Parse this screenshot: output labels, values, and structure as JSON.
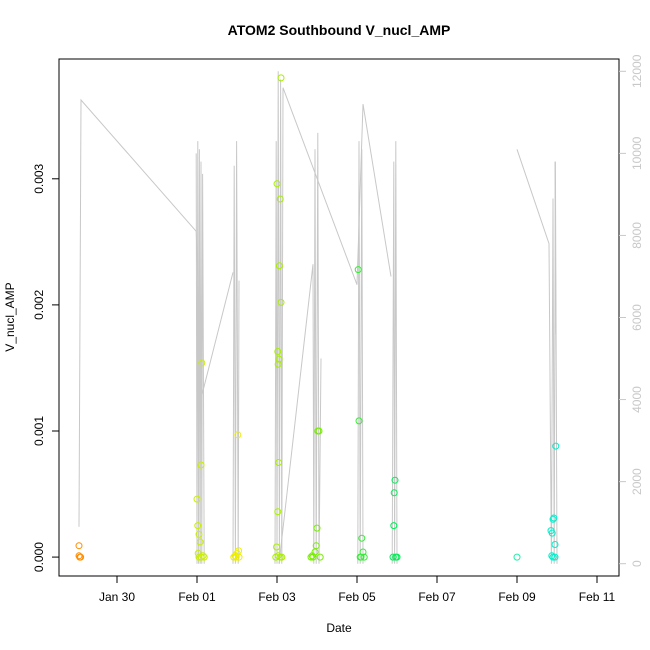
{
  "chart_data": {
    "type": "scatter",
    "title": "ATOM2 Southbound V_nucl_AMP",
    "xlabel": "Date",
    "ylabel": "V_nucl_AMP",
    "x_axis": {
      "unit": "days",
      "ticks": [
        {
          "label": "Jan 30",
          "value": 0
        },
        {
          "label": "Feb 01",
          "value": 2
        },
        {
          "label": "Feb 03",
          "value": 4
        },
        {
          "label": "Feb 05",
          "value": 6
        },
        {
          "label": "Feb 07",
          "value": 8
        },
        {
          "label": "Feb 09",
          "value": 10
        },
        {
          "label": "Feb 11",
          "value": 12
        }
      ],
      "range": [
        -1.45,
        12.55
      ]
    },
    "y_axis_left": {
      "range": [
        -0.00015,
        0.00395
      ],
      "ticks": [
        {
          "label": "0.000",
          "value": 0
        },
        {
          "label": "0.001",
          "value": 0.001
        },
        {
          "label": "0.002",
          "value": 0.002
        },
        {
          "label": "0.003",
          "value": 0.003
        }
      ]
    },
    "y_axis_right": {
      "range": [
        -300,
        12300
      ],
      "color": "#c8c8c8",
      "ticks": [
        {
          "label": "0",
          "value": 0
        },
        {
          "label": "2000",
          "value": 2000
        },
        {
          "label": "4000",
          "value": 4000
        },
        {
          "label": "6000",
          "value": 6000
        },
        {
          "label": "8000",
          "value": 8000
        },
        {
          "label": "10000",
          "value": 10000
        },
        {
          "label": "12000",
          "value": 12000
        }
      ]
    },
    "points": [
      {
        "x": -0.95,
        "y": 9e-05,
        "color": "#ff8c00"
      },
      {
        "x": -0.95,
        "y": 1e-05,
        "color": "#ff8c00"
      },
      {
        "x": -0.93,
        "y": 0.0,
        "color": "#ff8c00"
      },
      {
        "x": -0.91,
        "y": 0.0,
        "color": "#ff8c00"
      },
      {
        "x": 2.0,
        "y": 0.00046,
        "color": "#ccee00"
      },
      {
        "x": 2.02,
        "y": 0.00025,
        "color": "#ccee00"
      },
      {
        "x": 2.05,
        "y": 0.00018,
        "color": "#ccee00"
      },
      {
        "x": 2.08,
        "y": 0.00012,
        "color": "#ccee00"
      },
      {
        "x": 2.1,
        "y": 0.00073,
        "color": "#ccee00"
      },
      {
        "x": 2.12,
        "y": 0.00154,
        "color": "#ccee00"
      },
      {
        "x": 2.03,
        "y": 3e-05,
        "color": "#ccee00"
      },
      {
        "x": 2.05,
        "y": 0.0,
        "color": "#ccee00"
      },
      {
        "x": 2.1,
        "y": 0.0,
        "color": "#ccee00"
      },
      {
        "x": 2.15,
        "y": 1e-05,
        "color": "#ccee00"
      },
      {
        "x": 2.18,
        "y": 0.0,
        "color": "#ccee00"
      },
      {
        "x": 2.92,
        "y": 0.0,
        "color": "#eeee00"
      },
      {
        "x": 2.95,
        "y": 1e-05,
        "color": "#eeee00"
      },
      {
        "x": 2.98,
        "y": 0.0,
        "color": "#eeee00"
      },
      {
        "x": 3.0,
        "y": 3e-05,
        "color": "#eeee00"
      },
      {
        "x": 3.02,
        "y": 0.00097,
        "color": "#eeee00"
      },
      {
        "x": 3.04,
        "y": 5e-05,
        "color": "#eeee00"
      },
      {
        "x": 3.05,
        "y": 0.0,
        "color": "#eeee00"
      },
      {
        "x": 3.97,
        "y": 0.0,
        "color": "#aaee00"
      },
      {
        "x": 3.99,
        "y": 8e-05,
        "color": "#aaee00"
      },
      {
        "x": 4.0,
        "y": 0.00296,
        "color": "#aaee00"
      },
      {
        "x": 4.02,
        "y": 0.00163,
        "color": "#aaee00"
      },
      {
        "x": 4.03,
        "y": 0.00153,
        "color": "#aaee00"
      },
      {
        "x": 4.05,
        "y": 0.00157,
        "color": "#aaee00"
      },
      {
        "x": 4.06,
        "y": 0.00231,
        "color": "#aaee00"
      },
      {
        "x": 4.08,
        "y": 0.00284,
        "color": "#aaee00"
      },
      {
        "x": 4.1,
        "y": 0.00202,
        "color": "#aaee00"
      },
      {
        "x": 4.1,
        "y": 0.0038,
        "color": "#aaee00"
      },
      {
        "x": 4.04,
        "y": 0.00075,
        "color": "#aaee00"
      },
      {
        "x": 4.02,
        "y": 0.00036,
        "color": "#aaee00"
      },
      {
        "x": 4.03,
        "y": 1e-05,
        "color": "#aaee00"
      },
      {
        "x": 4.08,
        "y": 0.0,
        "color": "#aaee00"
      },
      {
        "x": 4.12,
        "y": 0.0,
        "color": "#aaee00"
      },
      {
        "x": 4.85,
        "y": 0.0,
        "color": "#77ee00"
      },
      {
        "x": 4.88,
        "y": 1e-05,
        "color": "#77ee00"
      },
      {
        "x": 4.9,
        "y": 0.0,
        "color": "#77ee00"
      },
      {
        "x": 4.95,
        "y": 4e-05,
        "color": "#77ee00"
      },
      {
        "x": 4.98,
        "y": 9e-05,
        "color": "#77ee00"
      },
      {
        "x": 5.0,
        "y": 0.00023,
        "color": "#77ee00"
      },
      {
        "x": 5.02,
        "y": 0.001,
        "color": "#77ee00"
      },
      {
        "x": 5.05,
        "y": 0.001,
        "color": "#77ee00"
      },
      {
        "x": 5.08,
        "y": 0.0,
        "color": "#77ee00"
      },
      {
        "x": 6.03,
        "y": 0.00228,
        "color": "#33ee33"
      },
      {
        "x": 6.05,
        "y": 0.00108,
        "color": "#33ee33"
      },
      {
        "x": 6.08,
        "y": 0.0,
        "color": "#33ee33"
      },
      {
        "x": 6.12,
        "y": 0.00015,
        "color": "#33ee33"
      },
      {
        "x": 6.15,
        "y": 4e-05,
        "color": "#33ee33"
      },
      {
        "x": 6.18,
        "y": 0.0,
        "color": "#33ee33"
      },
      {
        "x": 6.1,
        "y": 0.0,
        "color": "#33ee33"
      },
      {
        "x": 6.9,
        "y": 0.0,
        "color": "#00ee55"
      },
      {
        "x": 6.92,
        "y": 0.00025,
        "color": "#00ee55"
      },
      {
        "x": 6.93,
        "y": 0.00051,
        "color": "#00ee55"
      },
      {
        "x": 6.95,
        "y": 0.00061,
        "color": "#00ee55"
      },
      {
        "x": 6.97,
        "y": 0.0,
        "color": "#00ee55"
      },
      {
        "x": 7.0,
        "y": 0.0,
        "color": "#00ee55"
      },
      {
        "x": 10.0,
        "y": 0.0,
        "color": "#22eeaa"
      },
      {
        "x": 10.85,
        "y": 0.00021,
        "color": "#00eecc"
      },
      {
        "x": 10.88,
        "y": 0.00019,
        "color": "#00eecc"
      },
      {
        "x": 10.9,
        "y": 0.0003,
        "color": "#00eecc"
      },
      {
        "x": 10.92,
        "y": 0.00031,
        "color": "#00eecc"
      },
      {
        "x": 10.95,
        "y": 0.0001,
        "color": "#00eecc"
      },
      {
        "x": 10.97,
        "y": 0.00088,
        "color": "#00eecc"
      },
      {
        "x": 10.87,
        "y": 1e-05,
        "color": "#00eecc"
      },
      {
        "x": 10.9,
        "y": 0.0,
        "color": "#00eecc"
      },
      {
        "x": 10.95,
        "y": 0.0,
        "color": "#00eecc"
      }
    ],
    "line_series": {
      "axis": "right",
      "color": "#c8c8c8",
      "segments": [
        [
          [
            -0.95,
            900
          ],
          [
            -0.9,
            11300
          ],
          [
            1.98,
            8100
          ],
          [
            2.12,
            4100
          ],
          [
            2.9,
            7100
          ]
        ],
        [
          [
            1.98,
            10000
          ],
          [
            2.0,
            0
          ],
          [
            2.02,
            10300
          ],
          [
            2.04,
            0
          ],
          [
            2.06,
            10100
          ],
          [
            2.08,
            0
          ],
          [
            2.1,
            9800
          ],
          [
            2.12,
            0
          ],
          [
            2.14,
            9500
          ],
          [
            2.18,
            0
          ]
        ],
        [
          [
            2.9,
            0
          ],
          [
            2.93,
            9700
          ],
          [
            2.96,
            0
          ],
          [
            2.99,
            10300
          ],
          [
            3.03,
            0
          ],
          [
            3.05,
            6900
          ]
        ],
        [
          [
            3.95,
            0
          ],
          [
            3.98,
            10300
          ],
          [
            4.0,
            0
          ],
          [
            4.03,
            12000
          ],
          [
            4.06,
            0
          ],
          [
            4.09,
            11800
          ],
          [
            4.12,
            0
          ],
          [
            4.15,
            11600
          ],
          [
            6.0,
            6800
          ],
          [
            6.15,
            11200
          ],
          [
            6.85,
            7000
          ]
        ],
        [
          [
            4.05,
            0
          ],
          [
            4.9,
            7300
          ],
          [
            4.92,
            0
          ],
          [
            4.95,
            10100
          ],
          [
            4.98,
            0
          ],
          [
            5.02,
            10500
          ],
          [
            5.05,
            0
          ],
          [
            5.1,
            5000
          ]
        ],
        [
          [
            6.02,
            0
          ],
          [
            6.05,
            10300
          ],
          [
            6.08,
            0
          ],
          [
            6.12,
            10100
          ],
          [
            6.15,
            0
          ]
        ],
        [
          [
            6.88,
            0
          ],
          [
            6.92,
            9800
          ],
          [
            6.94,
            0
          ],
          [
            6.97,
            10300
          ],
          [
            7.0,
            0
          ]
        ],
        [
          [
            10.0,
            10100
          ],
          [
            10.8,
            7800
          ],
          [
            10.86,
            0
          ],
          [
            10.9,
            8900
          ],
          [
            10.93,
            0
          ],
          [
            10.96,
            9800
          ],
          [
            11.0,
            0
          ]
        ],
        [
          [
            10.97,
            5600
          ],
          [
            10.95,
            9800
          ]
        ]
      ]
    }
  }
}
